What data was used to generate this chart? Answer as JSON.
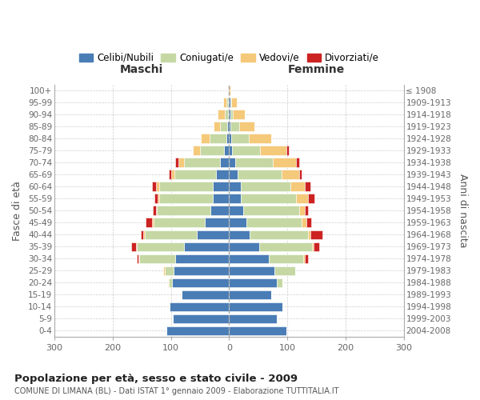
{
  "age_groups": [
    "100+",
    "95-99",
    "90-94",
    "85-89",
    "80-84",
    "75-79",
    "70-74",
    "65-69",
    "60-64",
    "55-59",
    "50-54",
    "45-49",
    "40-44",
    "35-39",
    "30-34",
    "25-29",
    "20-24",
    "15-19",
    "10-14",
    "5-9",
    "0-4"
  ],
  "birth_years": [
    "≤ 1908",
    "1909-1913",
    "1914-1918",
    "1919-1923",
    "1924-1928",
    "1929-1933",
    "1934-1938",
    "1939-1943",
    "1944-1948",
    "1949-1953",
    "1954-1958",
    "1959-1963",
    "1964-1968",
    "1969-1973",
    "1974-1978",
    "1979-1983",
    "1984-1988",
    "1989-1993",
    "1994-1998",
    "1999-2003",
    "2004-2008"
  ],
  "colors": {
    "celibi": "#4a7db5",
    "coniugati": "#c5d8a4",
    "vedovi": "#f5c97a",
    "divorziati": "#cc2222"
  },
  "maschi": {
    "celibi": [
      1,
      2,
      2,
      3,
      5,
      8,
      15,
      22,
      28,
      28,
      32,
      42,
      55,
      78,
      92,
      95,
      98,
      82,
      102,
      97,
      107
    ],
    "coniugati": [
      0,
      3,
      5,
      12,
      28,
      42,
      62,
      72,
      92,
      92,
      92,
      88,
      90,
      80,
      62,
      16,
      5,
      0,
      0,
      0,
      0
    ],
    "vedovi": [
      1,
      5,
      12,
      12,
      15,
      12,
      10,
      5,
      5,
      3,
      2,
      2,
      2,
      2,
      2,
      2,
      2,
      0,
      0,
      0,
      0
    ],
    "divorziati": [
      0,
      0,
      0,
      0,
      0,
      0,
      5,
      5,
      8,
      5,
      5,
      12,
      5,
      8,
      2,
      0,
      0,
      0,
      0,
      0,
      0
    ]
  },
  "femmine": {
    "celibi": [
      0,
      2,
      2,
      3,
      4,
      5,
      10,
      15,
      20,
      20,
      25,
      30,
      35,
      52,
      68,
      78,
      82,
      72,
      92,
      82,
      98
    ],
    "coniugati": [
      0,
      2,
      5,
      15,
      30,
      48,
      65,
      75,
      85,
      95,
      95,
      95,
      100,
      90,
      60,
      35,
      10,
      0,
      0,
      0,
      0
    ],
    "vedovi": [
      2,
      10,
      20,
      25,
      38,
      45,
      40,
      30,
      25,
      20,
      10,
      8,
      5,
      3,
      2,
      0,
      0,
      0,
      0,
      0,
      0
    ],
    "divorziati": [
      0,
      0,
      0,
      0,
      0,
      5,
      5,
      5,
      10,
      12,
      5,
      8,
      20,
      10,
      5,
      0,
      0,
      0,
      0,
      0,
      0
    ]
  },
  "xlim": 300,
  "title_main": "Popolazione per età, sesso e stato civile - 2009",
  "title_sub": "COMUNE DI LIMANA (BL) - Dati ISTAT 1° gennaio 2009 - Elaborazione TUTTITALIA.IT",
  "xlabel_left": "Maschi",
  "xlabel_right": "Femmine",
  "ylabel_left": "Fasce di età",
  "ylabel_right": "Anni di nascita",
  "legend_labels": [
    "Celibi/Nubili",
    "Coniugati/e",
    "Vedovi/e",
    "Divorziati/e"
  ],
  "bg_color": "#ffffff",
  "grid_color": "#cccccc"
}
